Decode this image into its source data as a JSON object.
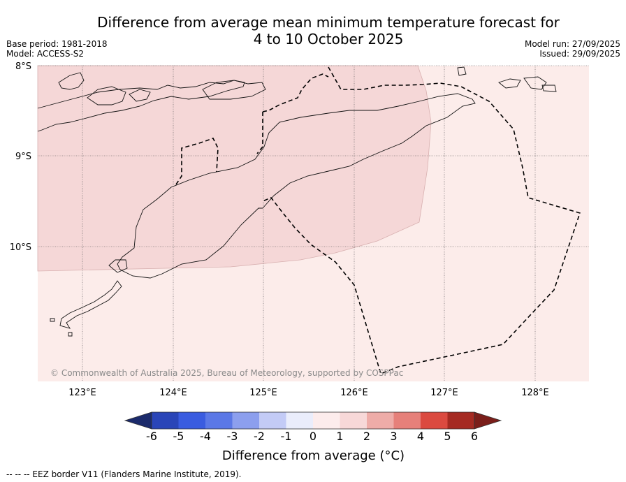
{
  "title_line1": "Difference from average mean minimum temperature forecast for",
  "title_line2": "4 to 10 October 2025",
  "base_period": "Base period: 1981-2018",
  "model": "Model: ACCESS-S2",
  "model_run": "Model run: 27/09/2025",
  "issued": "Issued: 29/09/2025",
  "lat_labels": [
    "8°S",
    "9°S",
    "10°S"
  ],
  "lon_labels": [
    "123°E",
    "124°E",
    "125°E",
    "126°E",
    "127°E",
    "128°E"
  ],
  "copyright": "© Commonwealth of Australia 2025, Bureau of Meteorology, supported by COSPPac",
  "colorbar": {
    "ticks": [
      "-6",
      "-5",
      "-4",
      "-3",
      "-2",
      "-1",
      "0",
      "1",
      "2",
      "3",
      "4",
      "5",
      "6"
    ],
    "colors": [
      "#1b2a6b",
      "#2a45b8",
      "#3a5ce0",
      "#5b78e6",
      "#8c9fee",
      "#c3cbf6",
      "#eaedfb",
      "#fcecec",
      "#f7d8d8",
      "#eeaca8",
      "#e6807a",
      "#db4a40",
      "#a52a22",
      "#7a1e1a"
    ],
    "label": "Difference from average (°C)"
  },
  "legend_footnote": "--  --  -- EEZ border V11 (Flanders Marine Institute, 2019).",
  "fill_colors": {
    "band_0_1": "#fcecea",
    "band_1_2": "#f5d7d7"
  }
}
